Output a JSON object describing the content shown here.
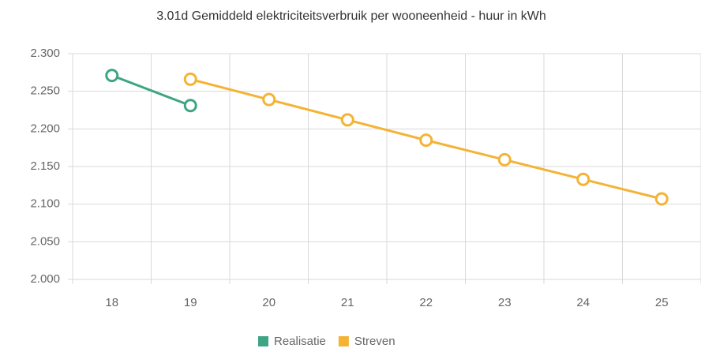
{
  "chart_data": {
    "type": "line",
    "title": "3.01d Gemiddeld elektriciteitsverbruik per wooneenheid - huur in kWh",
    "categories": [
      "18",
      "19",
      "20",
      "21",
      "22",
      "23",
      "24",
      "25"
    ],
    "series": [
      {
        "name": "Realisatie",
        "color": "#3ea584",
        "values": [
          2271,
          2231,
          null,
          null,
          null,
          null,
          null,
          null
        ]
      },
      {
        "name": "Streven",
        "color": "#f5b335",
        "values": [
          null,
          2266,
          2239,
          2212,
          2185,
          2159,
          2133,
          2107
        ]
      }
    ],
    "ylim": [
      2000,
      2300
    ],
    "yticks": [
      {
        "value": 2000,
        "label": "2.000"
      },
      {
        "value": 2050,
        "label": "2.050"
      },
      {
        "value": 2100,
        "label": "2.100"
      },
      {
        "value": 2150,
        "label": "2.150"
      },
      {
        "value": 2200,
        "label": "2.200"
      },
      {
        "value": 2250,
        "label": "2.250"
      },
      {
        "value": 2300,
        "label": "2.300"
      }
    ],
    "grid": true,
    "legend": "bottom"
  }
}
